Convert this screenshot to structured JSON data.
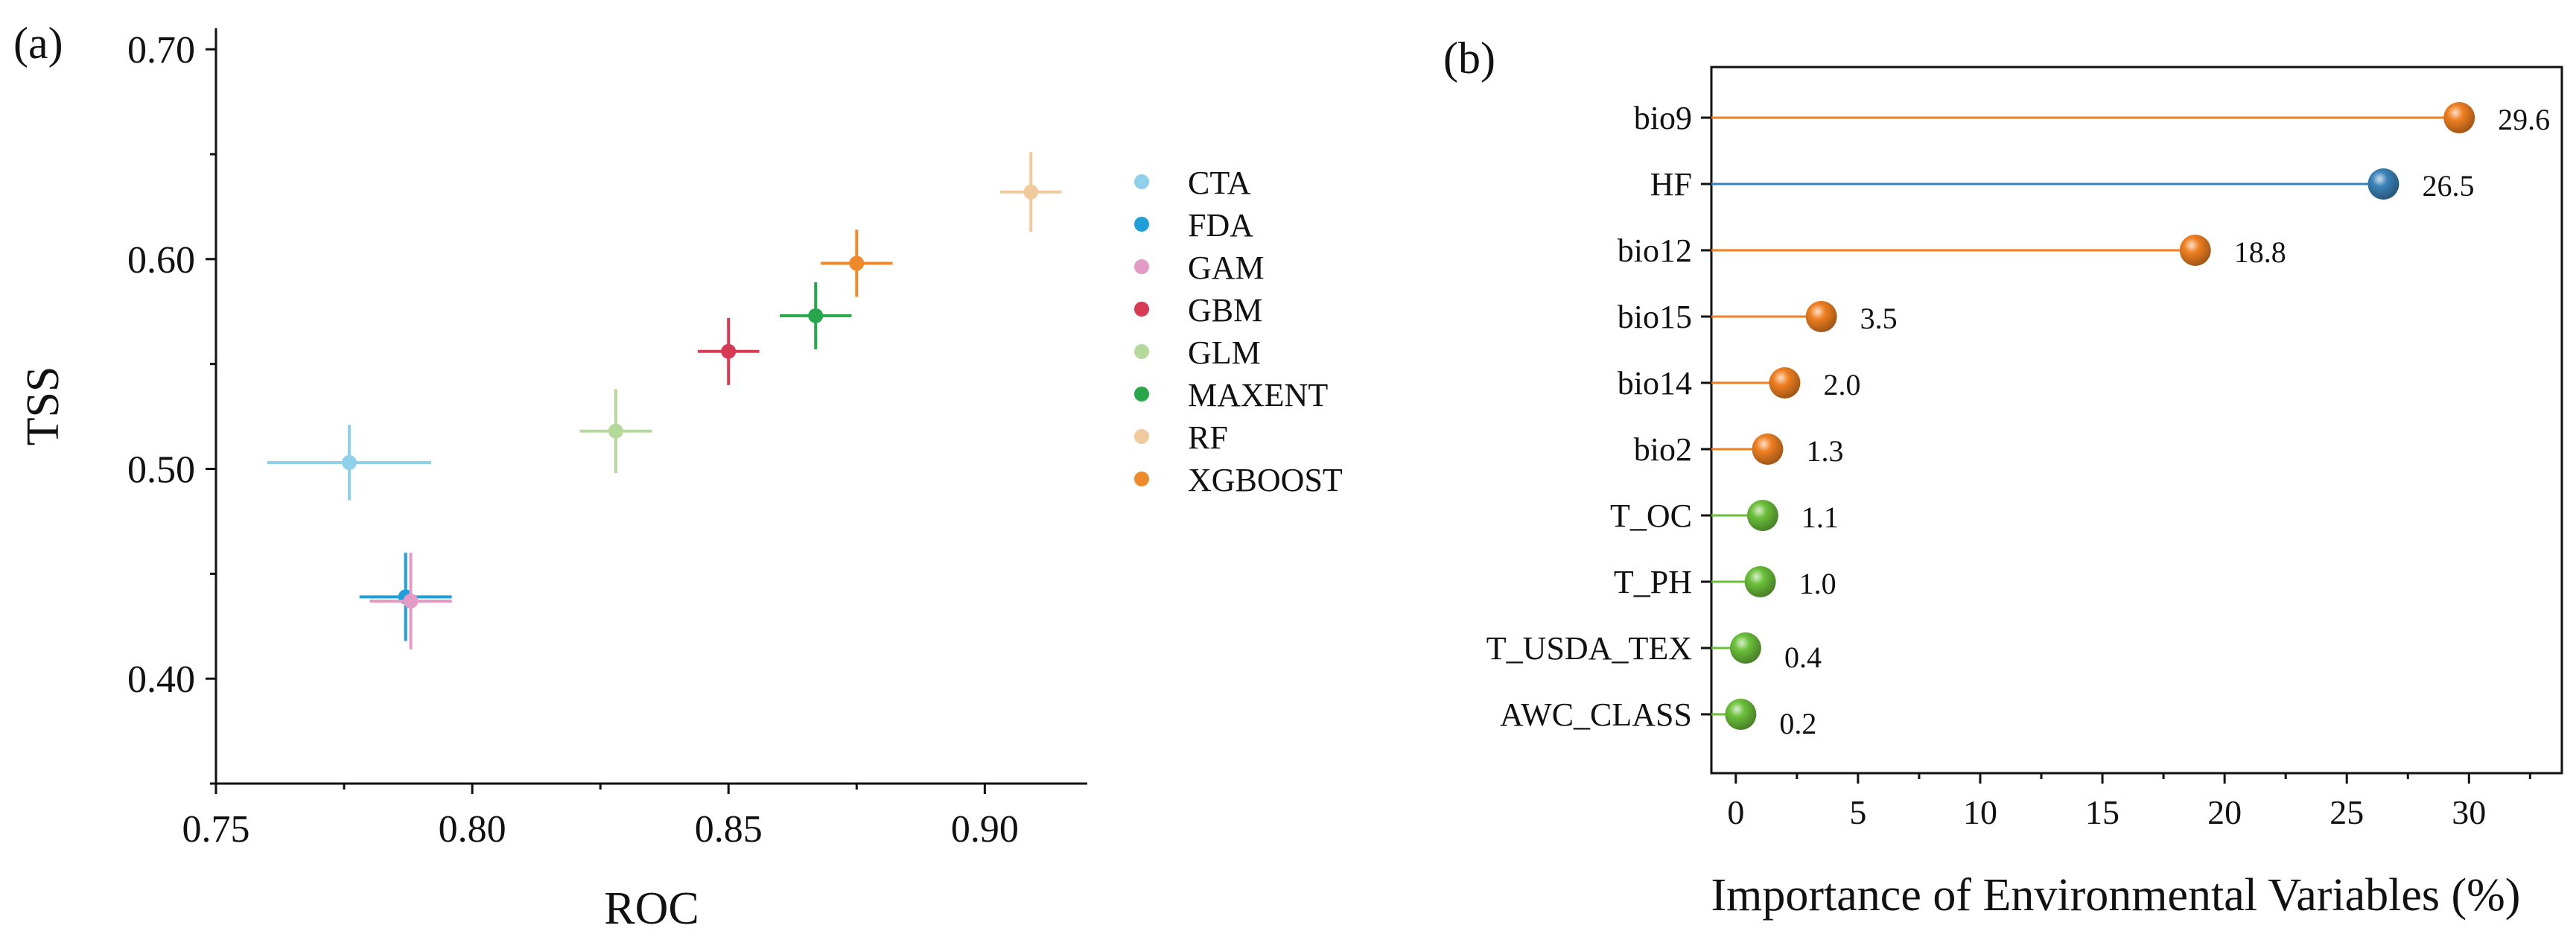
{
  "chart_data": [
    {
      "type": "scatter",
      "panel_label": "(a)",
      "title": "",
      "xlabel": "ROC",
      "ylabel": "TSS",
      "xlim": [
        0.75,
        0.92
      ],
      "ylim": [
        0.35,
        0.71
      ],
      "xticks": [
        0.75,
        0.8,
        0.85,
        0.9
      ],
      "xtick_labels": [
        "0.75",
        "0.80",
        "0.85",
        "0.90"
      ],
      "yticks": [
        0.4,
        0.5,
        0.6,
        0.7
      ],
      "ytick_labels": [
        "0.40",
        "0.50",
        "0.60",
        "0.70"
      ],
      "grid": false,
      "legend_position": "right",
      "series": [
        {
          "name": "CTA",
          "color": "#8fd0ea",
          "x": 0.776,
          "y": 0.503,
          "x_err": 0.016,
          "y_err": 0.018
        },
        {
          "name": "FDA",
          "color": "#1f9ed8",
          "x": 0.787,
          "y": 0.439,
          "x_err": 0.009,
          "y_err": 0.021
        },
        {
          "name": "GAM",
          "color": "#e39ac5",
          "x": 0.788,
          "y": 0.437,
          "x_err": 0.008,
          "y_err": 0.023
        },
        {
          "name": "GBM",
          "color": "#d63a54",
          "x": 0.85,
          "y": 0.556,
          "x_err": 0.006,
          "y_err": 0.016
        },
        {
          "name": "GLM",
          "color": "#b5d99a",
          "x": 0.828,
          "y": 0.518,
          "x_err": 0.007,
          "y_err": 0.02
        },
        {
          "name": "MAXENT",
          "color": "#27a64a",
          "x": 0.867,
          "y": 0.573,
          "x_err": 0.007,
          "y_err": 0.016
        },
        {
          "name": "RF",
          "color": "#f0c99c",
          "x": 0.909,
          "y": 0.632,
          "x_err": 0.006,
          "y_err": 0.019
        },
        {
          "name": "XGBOOST",
          "color": "#ef8a2c",
          "x": 0.875,
          "y": 0.598,
          "x_err": 0.007,
          "y_err": 0.016
        }
      ]
    },
    {
      "type": "lollipop",
      "panel_label": "(b)",
      "title": "",
      "xlabel": "Importance of Environmental Variables (%)",
      "ylabel": "",
      "xlim": [
        -1,
        33.8
      ],
      "xticks": [
        0,
        5,
        10,
        15,
        20,
        25,
        30
      ],
      "xtick_labels": [
        "0",
        "5",
        "10",
        "15",
        "20",
        "25",
        "30"
      ],
      "grid": false,
      "categories": [
        "bio9",
        "HF",
        "bio12",
        "bio15",
        "bio14",
        "bio2",
        "T_OC",
        "T_PH",
        "T_USDA_TEX",
        "AWC_CLASS"
      ],
      "values": [
        29.6,
        26.5,
        18.8,
        3.5,
        2.0,
        1.3,
        1.1,
        1.0,
        0.4,
        0.2
      ],
      "value_labels": [
        "29.6",
        "26.5",
        "18.8",
        "3.5",
        "2.0",
        "1.3",
        "1.1",
        "1.0",
        "0.4",
        "0.2"
      ],
      "colors": [
        "#ef7f22",
        "#3b82b8",
        "#ef7f22",
        "#ef7f22",
        "#ef7f22",
        "#ef7f22",
        "#6bbf3a",
        "#6bbf3a",
        "#6bbf3a",
        "#6bbf3a"
      ]
    }
  ]
}
